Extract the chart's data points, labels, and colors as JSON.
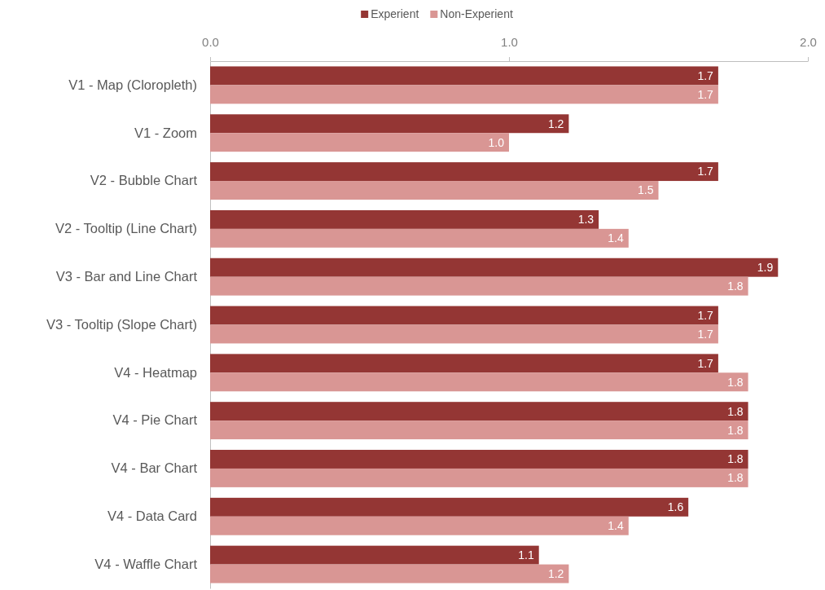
{
  "chart_data": {
    "type": "bar",
    "orientation": "horizontal",
    "categories": [
      "V1 - Map (Cloropleth)",
      "V1 - Zoom",
      "V2 - Bubble Chart",
      "V2 - Tooltip (Line Chart)",
      "V3 - Bar and Line Chart",
      "V3 - Tooltip (Slope Chart)",
      "V4 - Heatmap",
      "V4 - Pie Chart",
      "V4 - Bar Chart",
      "V4 - Data Card",
      "V4 - Waffle Chart"
    ],
    "series": [
      {
        "name": "Experient",
        "color": "#943634",
        "values": [
          1.7,
          1.2,
          1.7,
          1.3,
          1.9,
          1.7,
          1.7,
          1.8,
          1.8,
          1.6,
          1.1
        ],
        "value_labels": [
          "1.7",
          "1.2",
          "1.7",
          "1.3",
          "1.9",
          "1.7",
          "1.7",
          "1.8",
          "1.8",
          "1.6",
          "1.1"
        ]
      },
      {
        "name": "Non-Experient",
        "color": "#d99694",
        "values": [
          1.7,
          1.0,
          1.5,
          1.4,
          1.8,
          1.7,
          1.8,
          1.8,
          1.8,
          1.4,
          1.2
        ],
        "value_labels": [
          "1.7",
          "1.0",
          "1.5",
          "1.4",
          "1.8",
          "1.7",
          "1.8",
          "1.8",
          "1.8",
          "1.4",
          "1.2"
        ]
      }
    ],
    "xlim": [
      0,
      2
    ],
    "xticks": [
      {
        "value": 0,
        "label": "0.0"
      },
      {
        "value": 1,
        "label": "1.0"
      },
      {
        "value": 2,
        "label": "2.0"
      }
    ],
    "grid": false,
    "legend": "top"
  }
}
